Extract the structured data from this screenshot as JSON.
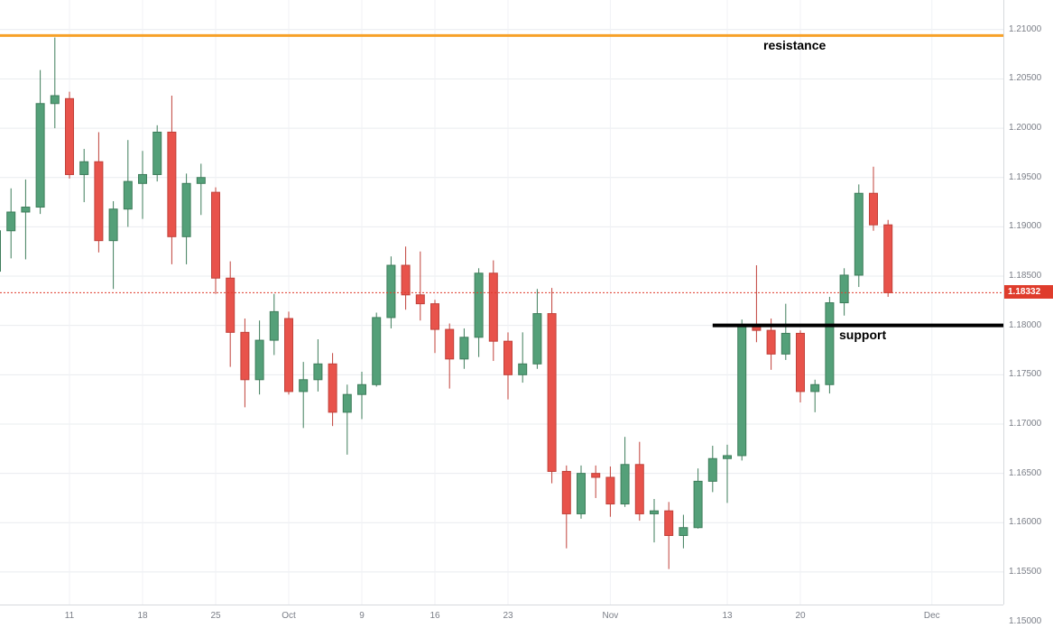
{
  "chart_data": {
    "type": "candlestick",
    "title": "",
    "ylim": [
      1.1517,
      1.213
    ],
    "grid": true,
    "legend": "none",
    "colors": {
      "up": "#54a079",
      "down": "#e8534b",
      "up_border": "#3e7d5b",
      "down_border": "#c0413a",
      "grid_h": "#e9ecef",
      "grid_v": "#f0f2f5",
      "axis_text": "#7a7e87",
      "background": "#ffffff"
    },
    "price_axis": {
      "side": "right",
      "ticks": [
        "1.21000",
        "1.20500",
        "1.20000",
        "1.19500",
        "1.19000",
        "1.18500",
        "1.18000",
        "1.17500",
        "1.17000",
        "1.16500",
        "1.16000",
        "1.15500",
        "1.15000"
      ]
    },
    "time_axis": {
      "ticks": [
        {
          "label": "11",
          "index": 5
        },
        {
          "label": "18",
          "index": 10
        },
        {
          "label": "25",
          "index": 15
        },
        {
          "label": "Oct",
          "index": 20
        },
        {
          "label": "9",
          "index": 25
        },
        {
          "label": "16",
          "index": 30
        },
        {
          "label": "23",
          "index": 35
        },
        {
          "label": "Nov",
          "index": 42
        },
        {
          "label": "13",
          "index": 50
        },
        {
          "label": "20",
          "index": 55
        },
        {
          "label": "Dec",
          "index": 64
        }
      ]
    },
    "columns": [
      "date",
      "open",
      "high",
      "low",
      "close"
    ],
    "candles": [
      [
        "09-04",
        1.1855,
        1.1922,
        1.185,
        1.1896
      ],
      [
        "09-05",
        1.1896,
        1.1939,
        1.1868,
        1.1915
      ],
      [
        "09-06",
        1.1915,
        1.1948,
        1.1867,
        1.192
      ],
      [
        "09-07",
        1.192,
        1.2059,
        1.1913,
        1.2025
      ],
      [
        "09-08",
        1.2025,
        1.2092,
        1.2,
        1.2033
      ],
      [
        "09-11",
        1.203,
        1.2037,
        1.1949,
        1.1953
      ],
      [
        "09-12",
        1.1953,
        1.1979,
        1.1925,
        1.1966
      ],
      [
        "09-13",
        1.1966,
        1.1996,
        1.1874,
        1.1886
      ],
      [
        "09-14",
        1.1886,
        1.1926,
        1.1837,
        1.1918
      ],
      [
        "09-15",
        1.1918,
        1.1988,
        1.19,
        1.1946
      ],
      [
        "09-18",
        1.1944,
        1.1977,
        1.1908,
        1.1953
      ],
      [
        "09-19",
        1.1953,
        1.2003,
        1.1946,
        1.1996
      ],
      [
        "09-20",
        1.1996,
        1.2033,
        1.1862,
        1.189
      ],
      [
        "09-21",
        1.189,
        1.1954,
        1.1862,
        1.1944
      ],
      [
        "09-22",
        1.1944,
        1.1964,
        1.1912,
        1.195
      ],
      [
        "09-25",
        1.1935,
        1.194,
        1.1832,
        1.1848
      ],
      [
        "09-26",
        1.1848,
        1.1865,
        1.1758,
        1.1793
      ],
      [
        "09-27",
        1.1793,
        1.1807,
        1.1717,
        1.1745
      ],
      [
        "09-28",
        1.1745,
        1.1805,
        1.173,
        1.1785
      ],
      [
        "09-29",
        1.1785,
        1.1832,
        1.177,
        1.1814
      ],
      [
        "10-02",
        1.1807,
        1.1814,
        1.173,
        1.1733
      ],
      [
        "10-03",
        1.1733,
        1.1763,
        1.1696,
        1.1745
      ],
      [
        "10-04",
        1.1745,
        1.1786,
        1.1733,
        1.1761
      ],
      [
        "10-05",
        1.1761,
        1.1772,
        1.1698,
        1.1712
      ],
      [
        "10-06",
        1.1712,
        1.174,
        1.1669,
        1.173
      ],
      [
        "10-09",
        1.173,
        1.1753,
        1.1705,
        1.174
      ],
      [
        "10-10",
        1.174,
        1.1813,
        1.1738,
        1.1808
      ],
      [
        "10-11",
        1.1808,
        1.187,
        1.1797,
        1.1861
      ],
      [
        "10-12",
        1.1861,
        1.188,
        1.1816,
        1.1831
      ],
      [
        "10-13",
        1.1831,
        1.1875,
        1.1805,
        1.1822
      ],
      [
        "10-16",
        1.1822,
        1.1826,
        1.1772,
        1.1796
      ],
      [
        "10-17",
        1.1796,
        1.1802,
        1.1736,
        1.1766
      ],
      [
        "10-18",
        1.1766,
        1.1797,
        1.1756,
        1.1788
      ],
      [
        "10-19",
        1.1788,
        1.1858,
        1.1768,
        1.1853
      ],
      [
        "10-20",
        1.1853,
        1.1866,
        1.1764,
        1.1784
      ],
      [
        "10-23",
        1.1784,
        1.1793,
        1.1725,
        1.175
      ],
      [
        "10-24",
        1.175,
        1.1793,
        1.1742,
        1.1761
      ],
      [
        "10-25",
        1.1761,
        1.1837,
        1.1756,
        1.1812
      ],
      [
        "10-26",
        1.1812,
        1.1838,
        1.164,
        1.1652
      ],
      [
        "10-27",
        1.1652,
        1.1658,
        1.1574,
        1.1609
      ],
      [
        "10-30",
        1.1609,
        1.1658,
        1.1604,
        1.165
      ],
      [
        "10-31",
        1.165,
        1.1658,
        1.1625,
        1.1646
      ],
      [
        "11-01",
        1.1646,
        1.1657,
        1.1606,
        1.1619
      ],
      [
        "11-02",
        1.1619,
        1.1687,
        1.1616,
        1.1659
      ],
      [
        "11-03",
        1.1659,
        1.1682,
        1.1602,
        1.1609
      ],
      [
        "11-06",
        1.1609,
        1.1624,
        1.158,
        1.1612
      ],
      [
        "11-07",
        1.1612,
        1.1621,
        1.1553,
        1.1587
      ],
      [
        "11-08",
        1.1587,
        1.1608,
        1.1574,
        1.1595
      ],
      [
        "11-09",
        1.1595,
        1.1655,
        1.1594,
        1.1642
      ],
      [
        "11-10",
        1.1642,
        1.1678,
        1.1631,
        1.1665
      ],
      [
        "11-13",
        1.1665,
        1.1679,
        1.162,
        1.1668
      ],
      [
        "11-14",
        1.1668,
        1.1806,
        1.1663,
        1.1799
      ],
      [
        "11-15",
        1.1799,
        1.1861,
        1.1783,
        1.1795
      ],
      [
        "11-16",
        1.1795,
        1.1807,
        1.1755,
        1.1771
      ],
      [
        "11-17",
        1.1771,
        1.1822,
        1.1765,
        1.1792
      ],
      [
        "11-20",
        1.1792,
        1.1795,
        1.1722,
        1.1733
      ],
      [
        "11-21",
        1.1733,
        1.1745,
        1.1712,
        1.174
      ],
      [
        "11-22",
        1.174,
        1.1829,
        1.1731,
        1.1823
      ],
      [
        "11-23",
        1.1823,
        1.1858,
        1.181,
        1.1851
      ],
      [
        "11-24",
        1.1851,
        1.1943,
        1.1839,
        1.1934
      ],
      [
        "11-27",
        1.1934,
        1.1961,
        1.1896,
        1.1902
      ],
      [
        "11-28",
        1.1902,
        1.1907,
        1.1829,
        1.18332
      ]
    ],
    "annotations": {
      "resistance_line": {
        "label": "resistance",
        "price": 1.2094,
        "color": "#f7a128",
        "width": 3
      },
      "support_line": {
        "label": "support",
        "price": 1.18,
        "color": "#000000",
        "width": 4,
        "start_index": 49
      },
      "last_price": {
        "label": "1.18332",
        "value": 1.18332,
        "color": "#df3c2c",
        "style": "dotted"
      }
    }
  }
}
